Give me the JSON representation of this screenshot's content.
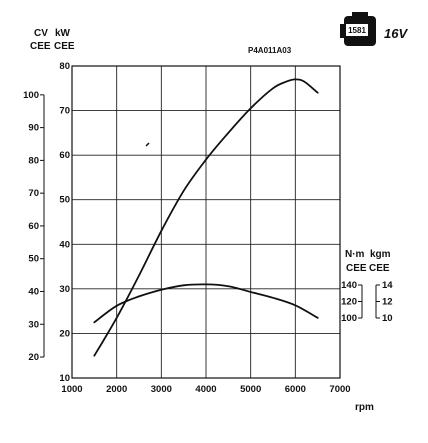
{
  "badge": {
    "engine": "1581",
    "valves": "16V"
  },
  "figure_code": "P4A011A03",
  "chart_data": {
    "type": "line",
    "x_axis": {
      "label": "rpm",
      "min": 1000,
      "max": 7000,
      "ticks": [
        1000,
        2000,
        3000,
        4000,
        5000,
        6000,
        7000
      ]
    },
    "left_axes": [
      {
        "unit": "CV",
        "std": "CEE",
        "ticks": [
          20,
          30,
          40,
          50,
          60,
          70,
          80,
          90,
          100
        ],
        "tick_labels": [
          "20",
          "30",
          "40",
          "50",
          "60",
          "70",
          "80",
          "90",
          "100"
        ]
      },
      {
        "unit": "kW",
        "std": "CEE",
        "min": 10,
        "max": 80,
        "ticks": [
          10,
          20,
          30,
          40,
          50,
          60,
          70,
          80
        ]
      }
    ],
    "right_axes": [
      {
        "unit": "N·m",
        "std": "CEE",
        "ticks": [
          100,
          120,
          140
        ]
      },
      {
        "unit": "kgm",
        "std": "CEE",
        "ticks": [
          10,
          12,
          14
        ]
      }
    ],
    "grid": true,
    "series": [
      {
        "type": "power",
        "unit": "kW",
        "x": [
          1500,
          2000,
          2500,
          3000,
          3500,
          4000,
          4500,
          5000,
          5500,
          5800,
          6000,
          6200,
          6500
        ],
        "y": [
          15,
          23.5,
          33,
          43,
          52,
          59,
          65,
          70.5,
          75,
          76.5,
          77,
          76.5,
          74
        ]
      },
      {
        "type": "torque",
        "unit": "kW",
        "x": [
          1500,
          2000,
          2500,
          3000,
          3500,
          4000,
          4500,
          5000,
          5500,
          6000,
          6500
        ],
        "y": [
          22.5,
          26.2,
          28.3,
          29.8,
          30.8,
          31,
          30.6,
          29.3,
          28,
          26.3,
          23.5
        ]
      }
    ]
  }
}
